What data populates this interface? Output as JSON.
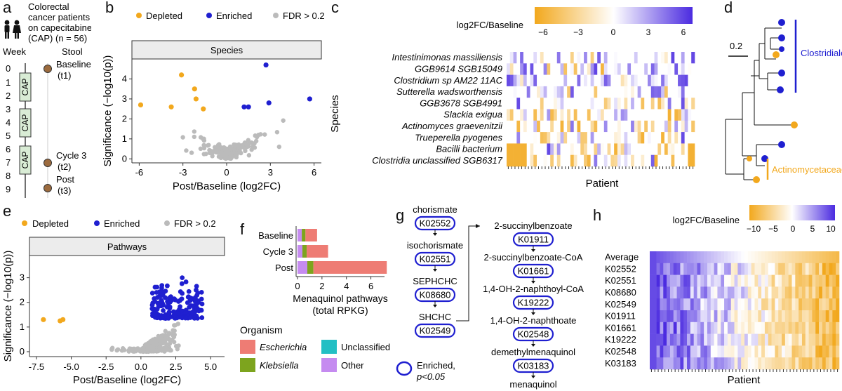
{
  "colors": {
    "depleted": "#F2A81D",
    "enriched": "#1F1FD0",
    "ns": "#BBBBBB",
    "cap_fill": "#D9ECD5",
    "stool": "#9C6B3E",
    "escherichia": "#EE7C74",
    "klebsiella": "#7DA41E",
    "unclassified": "#22BFC4",
    "other": "#C58BF0"
  },
  "panel_a": {
    "letter": "a",
    "title_lines": [
      "Colorectal",
      "cancer patients",
      "on capecitabine",
      "(CAP) (n = 56)"
    ],
    "week_label": "Week",
    "stool_label": "Stool",
    "weeks": [
      "0",
      "1",
      "2",
      "3",
      "4",
      "5",
      "6",
      "7",
      "8",
      "9"
    ],
    "cap_label": "CAP",
    "timepoints": [
      {
        "name": "Baseline",
        "sub": "(t1)"
      },
      {
        "name": "Cycle 3",
        "sub": "(t2)"
      },
      {
        "name": "Post",
        "sub": "(t3)"
      }
    ]
  },
  "panel_b": {
    "letter": "b",
    "legend": [
      "Depleted",
      "Enriched",
      "FDR > 0.2"
    ],
    "strip": "Species",
    "xlabel": "Post/Baseline (log2FC)",
    "ylabel": "Significance (−log10(p))",
    "xticks": [
      "-6",
      "-3",
      "0",
      "3",
      "6"
    ],
    "yticks": [
      "0",
      "1",
      "2",
      "3",
      "4"
    ]
  },
  "panel_c": {
    "letter": "c",
    "scale_title": "log2FC/Baseline",
    "scale_ticks": [
      "−6",
      "−3",
      "0",
      "3",
      "6"
    ],
    "ylabel": "Species",
    "xlabel": "Patient",
    "rows": [
      "Intestinimonas massiliensis",
      "GGB9614 SGB15049",
      "Clostridium sp AM22 11AC",
      "Sutterella wadsworthensis",
      "GGB3678 SGB4991",
      "Slackia exigua",
      "Actinomyces graevenitzii",
      "Trueperella pyogenes",
      "Bacilli bacterium",
      "Clostridia unclassified SGB6317"
    ]
  },
  "panel_d": {
    "letter": "d",
    "scale": "0.2",
    "clade1": "Clostridiales",
    "clade2": "Actinomycetaceae"
  },
  "panel_e": {
    "letter": "e",
    "legend": [
      "Depleted",
      "Enriched",
      "FDR > 0.2"
    ],
    "strip": "Pathways",
    "xlabel": "Post/Baseline (log2FC)",
    "ylabel": "Significance (−log10(p))",
    "xticks": [
      "-7.5",
      "-5.0",
      "-2.5",
      "0.0",
      "2.5",
      "5.0"
    ],
    "yticks": [
      "0",
      "1",
      "2",
      "3"
    ]
  },
  "panel_f": {
    "letter": "f",
    "xlabel_1": "Menaquinol pathways",
    "xlabel_2": "(total RPKG)",
    "xticks": [
      "0",
      "2",
      "4",
      "6"
    ],
    "legend_title": "Organism",
    "legend": [
      "Escherichia",
      "Unclassified",
      "Klebsiella",
      "Other"
    ]
  },
  "chart_data": [
    {
      "type": "scatter",
      "xlabel": "Post/Baseline (log2FC)",
      "ylabel": "Significance (−log10(p))",
      "xlim": [
        -6.5,
        6.5
      ],
      "ylim": [
        -0.2,
        5
      ],
      "series": [
        {
          "name": "Depleted",
          "points": [
            [
              -5.9,
              2.7
            ],
            [
              -3.8,
              2.6
            ],
            [
              -3.1,
              4.2
            ],
            [
              -2.2,
              3.5
            ],
            [
              -2.1,
              3.0
            ],
            [
              -1.6,
              2.5
            ]
          ]
        },
        {
          "name": "Enriched",
          "points": [
            [
              1.2,
              2.6
            ],
            [
              1.5,
              2.6
            ],
            [
              2.7,
              4.7
            ],
            [
              2.9,
              2.8
            ],
            [
              5.7,
              3.0
            ]
          ]
        }
      ]
    },
    {
      "type": "scatter",
      "xlabel": "Post/Baseline (log2FC)",
      "ylabel": "Significance (−log10(p))",
      "xlim": [
        -8,
        6
      ],
      "ylim": [
        -0.2,
        3.9
      ],
      "series": [
        {
          "name": "Depleted",
          "points": [
            [
              -7.0,
              1.3
            ],
            [
              -5.8,
              1.25
            ],
            [
              -5.6,
              1.3
            ]
          ]
        }
      ]
    },
    {
      "type": "bar",
      "categories": [
        "Baseline",
        "Cycle 3",
        "Post"
      ],
      "xlim": [
        0,
        7
      ],
      "series": [
        {
          "name": "Other",
          "values": [
            0.35,
            0.4,
            0.8
          ]
        },
        {
          "name": "Klebsiella",
          "values": [
            0.3,
            0.35,
            0.5
          ]
        },
        {
          "name": "Escherichia",
          "values": [
            0.95,
            1.75,
            6.0
          ]
        }
      ]
    }
  ],
  "panel_g": {
    "letter": "g",
    "left_nodes": [
      {
        "metabolite": "chorismate",
        "ko": "K02552"
      },
      {
        "metabolite": "isochorismate",
        "ko": "K02551"
      },
      {
        "metabolite": "SEPHCHC",
        "ko": "K08680"
      },
      {
        "metabolite": "SHCHC",
        "ko": "K02549"
      }
    ],
    "right_nodes": [
      {
        "metabolite": "2-succinylbenzoate",
        "ko": "K01911"
      },
      {
        "metabolite": "2-succinylbenzoate-CoA",
        "ko": "K01661"
      },
      {
        "metabolite": "1,4-OH-2-naphthoyl-CoA",
        "ko": "K19222"
      },
      {
        "metabolite": "1,4-OH-2-naphthoate",
        "ko": "K02548"
      },
      {
        "metabolite": "demethylmenaquinol",
        "ko": "K03183"
      }
    ],
    "end_product": "menaquinol",
    "legend_1": "Enriched,",
    "legend_2": "p<0.05"
  },
  "panel_h": {
    "letter": "h",
    "scale_title": "log2FC/Baseline",
    "scale_ticks": [
      "−10",
      "−5",
      "0",
      "5",
      "10"
    ],
    "xlabel": "Patient",
    "rows": [
      "Average",
      "K02552",
      "K02551",
      "K08680",
      "K02549",
      "K01911",
      "K01661",
      "K19222",
      "K02548",
      "K03183"
    ]
  }
}
